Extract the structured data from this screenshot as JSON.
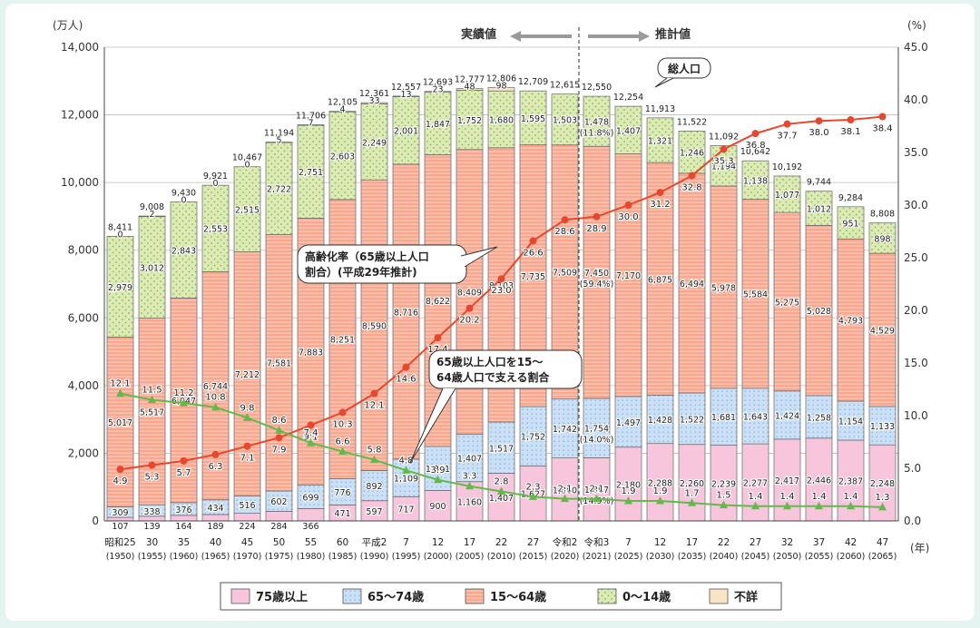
{
  "chart_data": {
    "type": "bar+line",
    "y_left_unit": "(万人)",
    "y_right_unit": "(%)",
    "x_unit": "(年)",
    "y_left_ticks": [
      "0",
      "2,000",
      "4,000",
      "6,000",
      "8,000",
      "10,000",
      "12,000",
      "14,000"
    ],
    "y_right_ticks": [
      "0.0",
      "5.0",
      "10.0",
      "15.0",
      "20.0",
      "25.0",
      "30.0",
      "35.0",
      "40.0",
      "45.0"
    ],
    "ylim_left": [
      0,
      14000
    ],
    "ylim_right": [
      0,
      45
    ],
    "actual_label": "実績値",
    "projected_label": "推計値",
    "total_label": "総人口",
    "aging_rate_label_1": "高齢化率（65歳以上人口",
    "aging_rate_label_2": "割合）(平成29年推計)",
    "support_label_1": "65歳以上人口を15～",
    "support_label_2": "64歳人口で支える割合",
    "categories": [
      "昭和25",
      "30",
      "35",
      "40",
      "45",
      "50",
      "55",
      "60",
      "平成2",
      "7",
      "12",
      "17",
      "22",
      "27",
      "令和2",
      "令和3",
      "7",
      "12",
      "17",
      "22",
      "27",
      "32",
      "37",
      "42",
      "47"
    ],
    "years": [
      "(1950)",
      "(1955)",
      "(1960)",
      "(1965)",
      "(1970)",
      "(1975)",
      "(1980)",
      "(1985)",
      "(1990)",
      "(1995)",
      "(2000)",
      "(2005)",
      "(2010)",
      "(2015)",
      "(2020)",
      "(2021)",
      "(2025)",
      "(2030)",
      "(2035)",
      "(2040)",
      "(2045)",
      "(2050)",
      "(2055)",
      "(2060)",
      "(2065)"
    ],
    "totals": [
      "8,411",
      "9,008",
      "9,430",
      "9,921",
      "10,467",
      "11,194",
      "11,706",
      "12,105",
      "12,361",
      "12,557",
      "12,693",
      "12,777",
      "12,806",
      "12,709",
      "12,615",
      "12,550",
      "12,254",
      "11,913",
      "11,522",
      "11,092",
      "10,642",
      "10,192",
      "9,744",
      "9,284",
      "8,808"
    ],
    "series": [
      {
        "name": "75歳以上",
        "color": "#f7c5dc",
        "values": [
          107,
          139,
          164,
          189,
          224,
          284,
          366,
          471,
          597,
          717,
          900,
          1160,
          1407,
          1627,
          1860,
          1867,
          2180,
          2288,
          2260,
          2239,
          2277,
          2417,
          2446,
          2387,
          2248
        ]
      },
      {
        "name": "65～74歳",
        "color": "#c9e0f6",
        "values": [
          309,
          338,
          376,
          434,
          516,
          602,
          699,
          776,
          892,
          1109,
          1301,
          1407,
          1517,
          1752,
          1742,
          1754,
          1497,
          1428,
          1522,
          1681,
          1643,
          1424,
          1258,
          1154,
          1133
        ]
      },
      {
        "name": "15～64歳",
        "color": "#f6a890",
        "values": [
          5017,
          5517,
          6047,
          6744,
          7212,
          7581,
          7883,
          8251,
          8590,
          8716,
          8622,
          8409,
          8103,
          7735,
          7509,
          7450,
          7170,
          6875,
          6494,
          5978,
          5584,
          5275,
          5028,
          4793,
          4529
        ]
      },
      {
        "name": "0～14歳",
        "color": "#dcebb4",
        "values": [
          2979,
          3012,
          2843,
          2553,
          2515,
          2722,
          2751,
          2603,
          2249,
          2001,
          1847,
          1752,
          1680,
          1595,
          1503,
          1478,
          1407,
          1321,
          1246,
          1194,
          1138,
          1077,
          1012,
          951,
          898
        ]
      },
      {
        "name": "不詳",
        "color": "#fbe3c6",
        "values": [
          0,
          2,
          0,
          0,
          0,
          5,
          7,
          4,
          33,
          13,
          23,
          48,
          98,
          0,
          0,
          0,
          0,
          0,
          0,
          0,
          0,
          0,
          0,
          0,
          0
        ]
      }
    ],
    "bar_labels": {
      "s75": [
        "107",
        "139",
        "164",
        "189",
        "224",
        "284",
        "366",
        "471",
        "597",
        "717",
        "900",
        "1,160",
        "1,407",
        "1,627",
        "1,860",
        "1,867",
        "2,180",
        "2,288",
        "2,260",
        "2,239",
        "2,277",
        "2,417",
        "2,446",
        "2,387",
        "2,248"
      ],
      "s65": [
        "309",
        "338",
        "376",
        "434",
        "516",
        "602",
        "699",
        "776",
        "892",
        "1,109",
        "1,301",
        "1,407",
        "1,517",
        "1,752",
        "1,742",
        "1,754",
        "1,497",
        "1,428",
        "1,522",
        "1,681",
        "1,643",
        "1,424",
        "1,258",
        "1,154",
        "1,133"
      ],
      "s15": [
        "5,017",
        "5,517",
        "6,047",
        "6,744",
        "7,212",
        "7,581",
        "7,883",
        "8,251",
        "8,590",
        "8,716",
        "8,622",
        "8,409",
        "8,103",
        "7,735",
        "7,509",
        "7,450",
        "7,170",
        "6,875",
        "6,494",
        "5,978",
        "5,584",
        "5,275",
        "5,028",
        "4,793",
        "4,529"
      ],
      "s0": [
        "2,979",
        "3,012",
        "2,843",
        "2,553",
        "2,515",
        "2,722",
        "2,751",
        "2,603",
        "2,249",
        "2,001",
        "1,847",
        "1,752",
        "1,680",
        "1,595",
        "1,503",
        "1,478",
        "1,407",
        "1,321",
        "1,246",
        "1,194",
        "1,138",
        "1,077",
        "1,012",
        "951",
        "898"
      ],
      "unknown": [
        "0",
        "2",
        "0",
        "0",
        "0",
        "5",
        "7",
        "4",
        "33",
        "13",
        "23",
        "48",
        "98",
        "",
        "",
        "",
        "",
        "",
        "",
        "",
        "",
        "",
        "",
        "",
        ""
      ]
    },
    "extra_labels": {
      "s75_2021": "(14.9%)",
      "s65_2021": "(14.0%)",
      "s15_2021": "(59.4%)",
      "s0_2021": "(11.8%)"
    },
    "aging_rate": {
      "name": "高齢化率",
      "color": "#e8472f",
      "values": [
        4.9,
        5.3,
        5.7,
        6.3,
        7.1,
        7.9,
        9.1,
        10.3,
        12.1,
        14.6,
        17.4,
        20.2,
        23.0,
        26.6,
        28.6,
        28.9,
        30.0,
        31.2,
        32.8,
        35.3,
        36.8,
        37.7,
        38.0,
        38.1,
        38.4
      ]
    },
    "aging_rate_labels": [
      "4.9",
      "5.3",
      "5.7",
      "6.3",
      "7.1",
      "7.9",
      "9.1",
      "10.3",
      "12.1",
      "14.6",
      "17.4",
      "20.2",
      "23.0",
      "26.6",
      "28.6",
      "28.9",
      "30.0",
      "31.2",
      "32.8",
      "35.3",
      "36.8",
      "37.7",
      "38.0",
      "38.1",
      "38.4"
    ],
    "support_ratio": {
      "name": "65歳以上人口を15～64歳人口で支える割合",
      "color": "#63b94a",
      "values": [
        12.1,
        11.5,
        11.2,
        10.8,
        9.8,
        8.6,
        7.4,
        6.6,
        5.8,
        4.8,
        3.9,
        3.3,
        2.8,
        2.3,
        2.1,
        2.1,
        1.9,
        1.9,
        1.7,
        1.5,
        1.4,
        1.4,
        1.4,
        1.4,
        1.3
      ]
    },
    "support_ratio_labels": [
      "12.1",
      "11.5",
      "11.2",
      "10.8",
      "9.8",
      "8.6",
      "7.4",
      "6.6",
      "5.8",
      "4.8",
      "3.9",
      "3.3",
      "2.8",
      "2.3",
      "2.1",
      "2.1",
      "1.9",
      "1.9",
      "1.7",
      "1.5",
      "1.4",
      "1.4",
      "1.4",
      "1.4",
      "1.3"
    ],
    "legend": [
      "75歳以上",
      "65～74歳",
      "15～64歳",
      "0～14歳",
      "不詳"
    ]
  }
}
